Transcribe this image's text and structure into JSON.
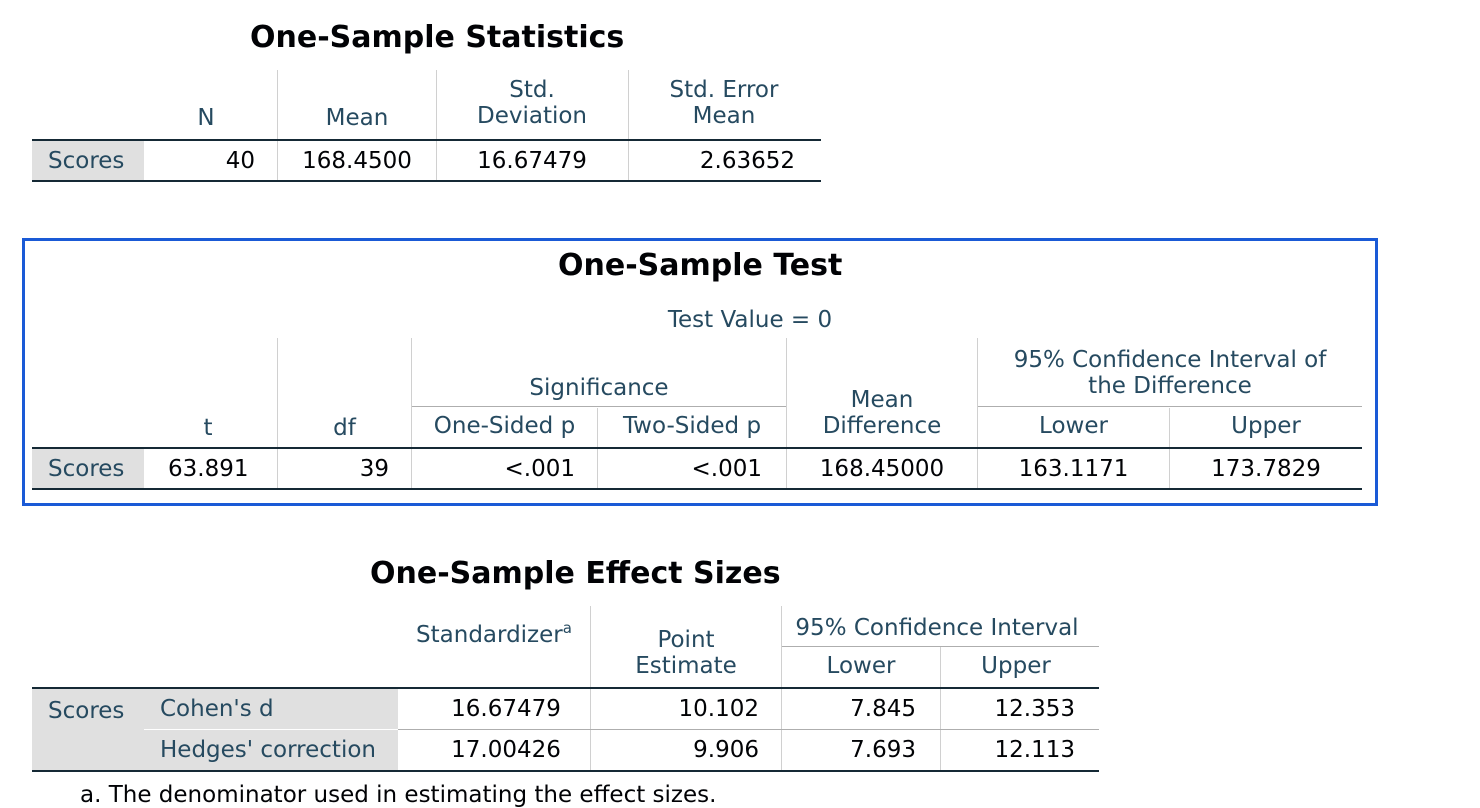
{
  "stats": {
    "title": "One-Sample Statistics",
    "headers": {
      "n": "N",
      "mean": "Mean",
      "std_dev_1": "Std.",
      "std_dev_2": "Deviation",
      "std_err_1": "Std. Error",
      "std_err_2": "Mean"
    },
    "row": {
      "label": "Scores",
      "n": "40",
      "mean": "168.4500",
      "std_dev": "16.67479",
      "std_err": "2.63652"
    }
  },
  "test": {
    "title": "One-Sample Test",
    "test_value": "Test Value = 0",
    "headers": {
      "t": "t",
      "df": "df",
      "significance": "Significance",
      "one_sided": "One-Sided p",
      "two_sided": "Two-Sided p",
      "mean_diff_1": "Mean",
      "mean_diff_2": "Difference",
      "ci_1": "95% Confidence Interval of",
      "ci_2": "the Difference",
      "lower": "Lower",
      "upper": "Upper"
    },
    "row": {
      "label": "Scores",
      "t": "63.891",
      "df": "39",
      "one_sided": "<.001",
      "two_sided": "<.001",
      "mean_diff": "168.45000",
      "lower": "163.1171",
      "upper": "173.7829"
    }
  },
  "effect": {
    "title": "One-Sample Effect Sizes",
    "headers": {
      "standardizer": "Standardizer",
      "standardizer_sup": "a",
      "point_1": "Point",
      "point_2": "Estimate",
      "ci": "95% Confidence Interval",
      "lower": "Lower",
      "upper": "Upper"
    },
    "group_label": "Scores",
    "rows": [
      {
        "label": "Cohen's d",
        "standardizer": "16.67479",
        "point": "10.102",
        "lower": "7.845",
        "upper": "12.353"
      },
      {
        "label": "Hedges' correction",
        "standardizer": "17.00426",
        "point": "9.906",
        "lower": "7.693",
        "upper": "12.113"
      }
    ],
    "footnote": "a. The denominator used in estimating the effect sizes."
  }
}
